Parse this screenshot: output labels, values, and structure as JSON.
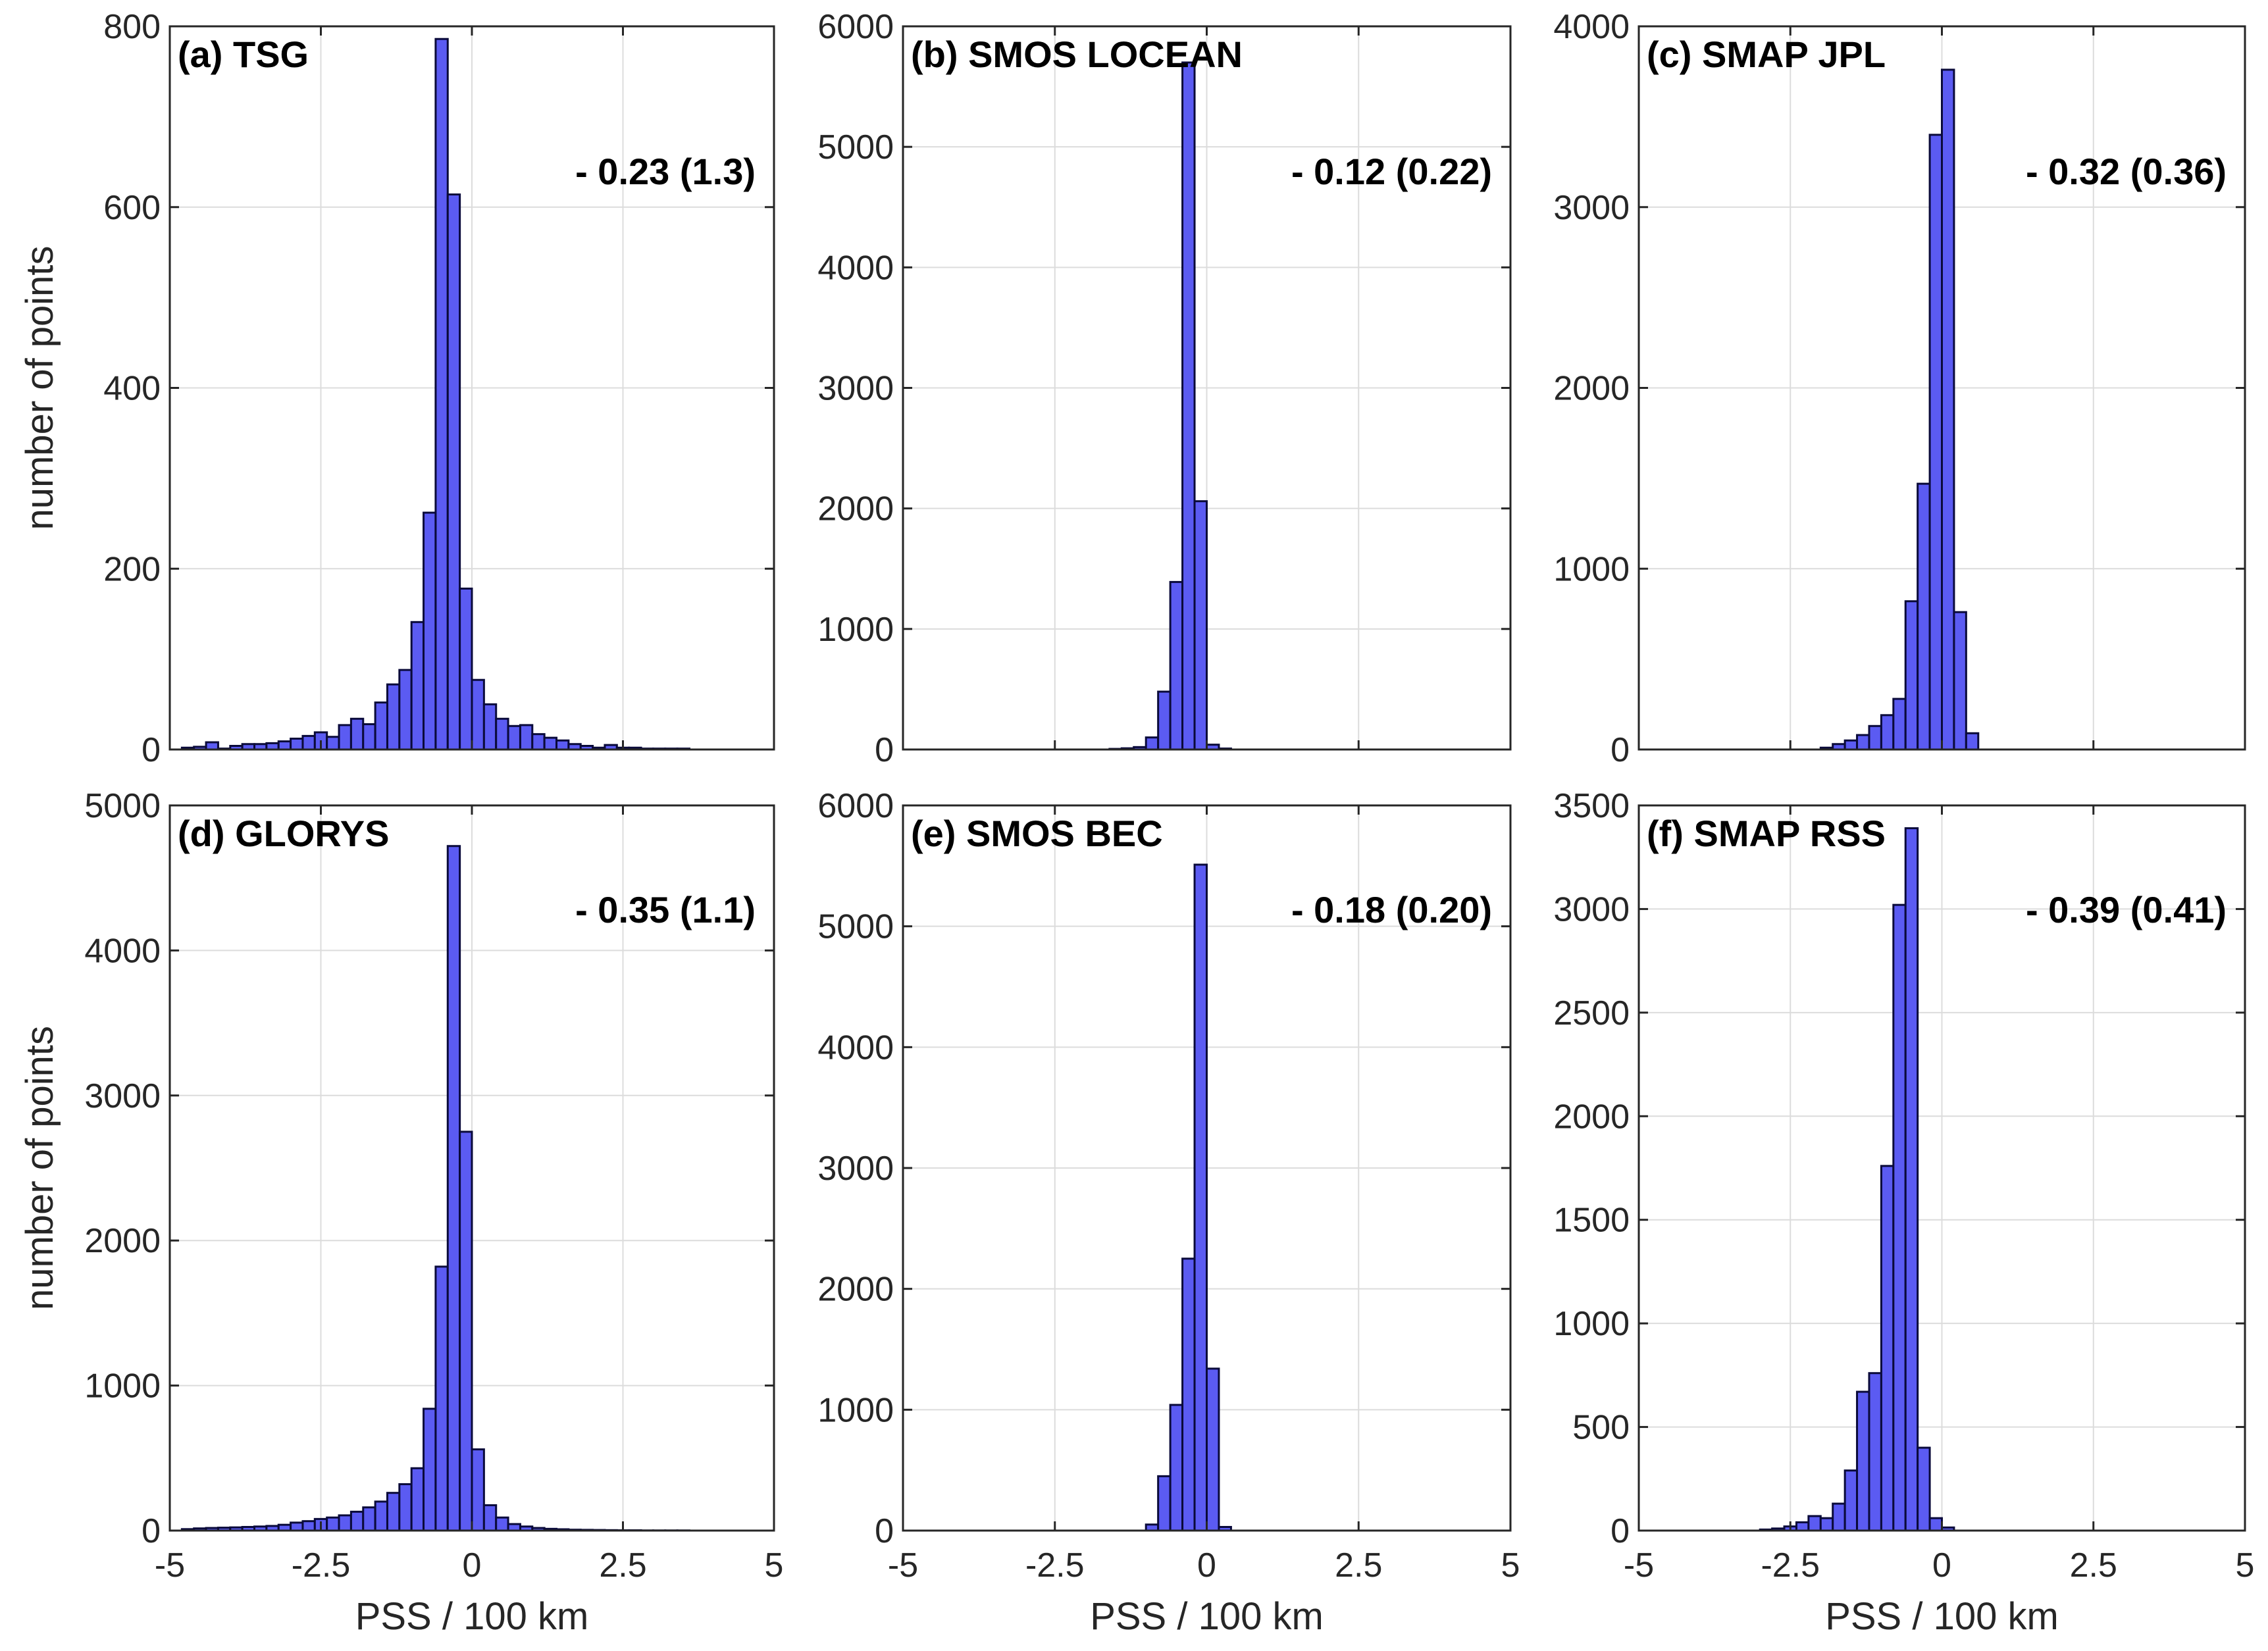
{
  "colors": {
    "bar_fill": "#5b5bf2",
    "bar_edge": "#0a0a3a",
    "grid": "#dcdcdc",
    "axes": "#262626"
  },
  "chart_data": [
    {
      "type": "bar",
      "panel": "a",
      "title": "(a) TSG",
      "annotation": "- 0.23 (1.3)",
      "xlabel": "",
      "ylabel": "number of points",
      "xlim": [
        -5,
        5
      ],
      "ylim": [
        0,
        800
      ],
      "xticks": [
        -5,
        -2.5,
        0,
        2.5,
        5
      ],
      "xtick_labels": [
        "",
        "",
        "",
        "",
        ""
      ],
      "yticks": [
        0,
        200,
        400,
        600,
        800
      ],
      "ytick_labels": [
        "0",
        "200",
        "400",
        "600",
        "800"
      ],
      "bin_start": -4.8,
      "bin_width": 0.2,
      "values": [
        2,
        3,
        8,
        1,
        4,
        6,
        6,
        7,
        9,
        12,
        15,
        19,
        14,
        27,
        34,
        28,
        52,
        72,
        88,
        141,
        262,
        786,
        614,
        178,
        77,
        50,
        34,
        26,
        27,
        17,
        13,
        10,
        6,
        4,
        2,
        5,
        2,
        2,
        1,
        1,
        1,
        1
      ]
    },
    {
      "type": "bar",
      "panel": "b",
      "title": "(b) SMOS LOCEAN",
      "annotation": "- 0.12 (0.22)",
      "xlabel": "",
      "ylabel": "",
      "xlim": [
        -5,
        5
      ],
      "ylim": [
        0,
        6000
      ],
      "xticks": [
        -5,
        -2.5,
        0,
        2.5,
        5
      ],
      "xtick_labels": [
        "",
        "",
        "",
        "",
        ""
      ],
      "yticks": [
        0,
        1000,
        2000,
        3000,
        4000,
        5000,
        6000
      ],
      "ytick_labels": [
        "0",
        "1000",
        "2000",
        "3000",
        "4000",
        "5000",
        "6000"
      ],
      "bin_start": -1.6,
      "bin_width": 0.2,
      "values": [
        5,
        10,
        20,
        100,
        480,
        1390,
        5700,
        2060,
        40,
        8
      ]
    },
    {
      "type": "bar",
      "panel": "c",
      "title": "(c) SMAP JPL",
      "annotation": "- 0.32 (0.36)",
      "xlabel": "",
      "ylabel": "",
      "xlim": [
        -5,
        5
      ],
      "ylim": [
        0,
        4000
      ],
      "xticks": [
        -5,
        -2.5,
        0,
        2.5,
        5
      ],
      "xtick_labels": [
        "",
        "",
        "",
        "",
        ""
      ],
      "yticks": [
        0,
        1000,
        2000,
        3000,
        4000
      ],
      "ytick_labels": [
        "0",
        "1000",
        "2000",
        "3000",
        "4000"
      ],
      "bin_start": -2.0,
      "bin_width": 0.2,
      "values": [
        10,
        30,
        50,
        80,
        130,
        190,
        280,
        820,
        1470,
        3400,
        3760,
        760,
        90
      ]
    },
    {
      "type": "bar",
      "panel": "d",
      "title": "(d) GLORYS",
      "annotation": "- 0.35 (1.1)",
      "xlabel": "PSS / 100 km",
      "ylabel": "number of points",
      "xlim": [
        -5,
        5
      ],
      "ylim": [
        0,
        5000
      ],
      "xticks": [
        -5,
        -2.5,
        0,
        2.5,
        5
      ],
      "xtick_labels": [
        "-5",
        "-2.5",
        "0",
        "2.5",
        "5"
      ],
      "yticks": [
        0,
        1000,
        2000,
        3000,
        4000,
        5000
      ],
      "ytick_labels": [
        "0",
        "1000",
        "2000",
        "3000",
        "4000",
        "5000"
      ],
      "bin_start": -4.8,
      "bin_width": 0.2,
      "values": [
        10,
        15,
        18,
        20,
        22,
        25,
        28,
        32,
        40,
        55,
        65,
        80,
        90,
        105,
        130,
        160,
        200,
        260,
        320,
        430,
        840,
        1820,
        4720,
        2750,
        560,
        175,
        90,
        45,
        28,
        18,
        12,
        9,
        6,
        5,
        4,
        3,
        2,
        2,
        1,
        1,
        1,
        1
      ]
    },
    {
      "type": "bar",
      "panel": "e",
      "title": "(e) SMOS BEC",
      "annotation": "- 0.18 (0.20)",
      "xlabel": "PSS / 100 km",
      "ylabel": "",
      "xlim": [
        -5,
        5
      ],
      "ylim": [
        0,
        6000
      ],
      "xticks": [
        -5,
        -2.5,
        0,
        2.5,
        5
      ],
      "xtick_labels": [
        "-5",
        "-2.5",
        "0",
        "2.5",
        "5"
      ],
      "yticks": [
        0,
        1000,
        2000,
        3000,
        4000,
        5000,
        6000
      ],
      "ytick_labels": [
        "0",
        "1000",
        "2000",
        "3000",
        "4000",
        "5000",
        "6000"
      ],
      "bin_start": -1.0,
      "bin_width": 0.2,
      "values": [
        50,
        450,
        1040,
        2250,
        5510,
        1340,
        30
      ]
    },
    {
      "type": "bar",
      "panel": "f",
      "title": "(f) SMAP RSS",
      "annotation": "- 0.39 (0.41)",
      "xlabel": "PSS / 100 km",
      "ylabel": "",
      "xlim": [
        -5,
        5
      ],
      "ylim": [
        0,
        3500
      ],
      "xticks": [
        -5,
        -2.5,
        0,
        2.5,
        5
      ],
      "xtick_labels": [
        "-5",
        "-2.5",
        "0",
        "2.5",
        "5"
      ],
      "yticks": [
        0,
        500,
        1000,
        1500,
        2000,
        2500,
        3000,
        3500
      ],
      "ytick_labels": [
        "0",
        "500",
        "1000",
        "1500",
        "2000",
        "2500",
        "3000",
        "3500"
      ],
      "bin_start": -3.0,
      "bin_width": 0.2,
      "values": [
        5,
        10,
        20,
        40,
        70,
        60,
        130,
        290,
        670,
        760,
        1760,
        3020,
        3390,
        400,
        60,
        15
      ]
    }
  ]
}
